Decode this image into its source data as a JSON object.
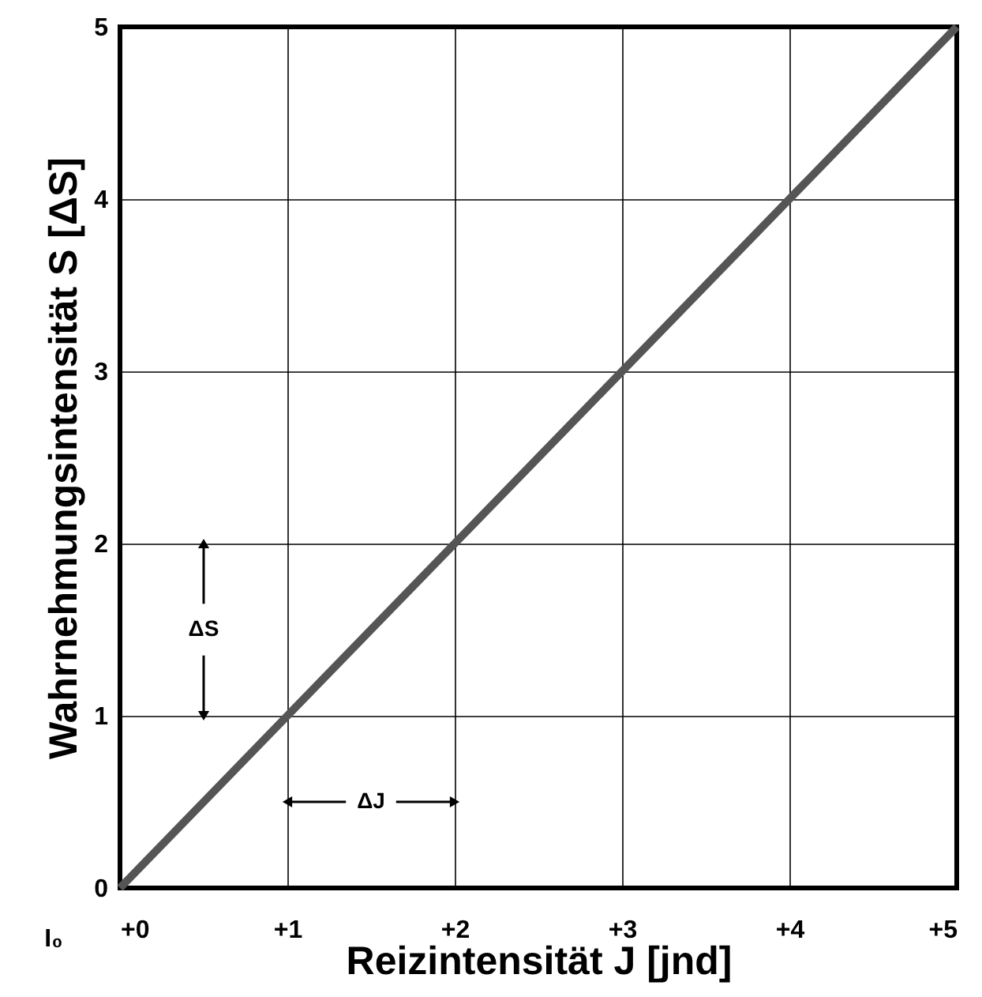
{
  "chart_data": {
    "type": "line",
    "xlabel": "Reizintensität J [jnd]",
    "ylabel": "Wahrnehmungsintensität S [ΔS]",
    "x": [
      0,
      5
    ],
    "series": [
      {
        "color": "#555555",
        "values": [
          0,
          5
        ]
      }
    ],
    "xlim": [
      0,
      5
    ],
    "ylim": [
      0,
      5
    ],
    "xticks": [
      {
        "value": 0,
        "label": "+0"
      },
      {
        "value": 1,
        "label": "+1"
      },
      {
        "value": 2,
        "label": "+2"
      },
      {
        "value": 3,
        "label": "+3"
      },
      {
        "value": 4,
        "label": "+4"
      },
      {
        "value": 5,
        "label": "+5"
      }
    ],
    "yticks": [
      0,
      1,
      2,
      3,
      4,
      5
    ],
    "grid": true,
    "marker": "none",
    "line_style": "solid",
    "annotations": [
      "I₀",
      "ΔS",
      "ΔJ"
    ]
  }
}
